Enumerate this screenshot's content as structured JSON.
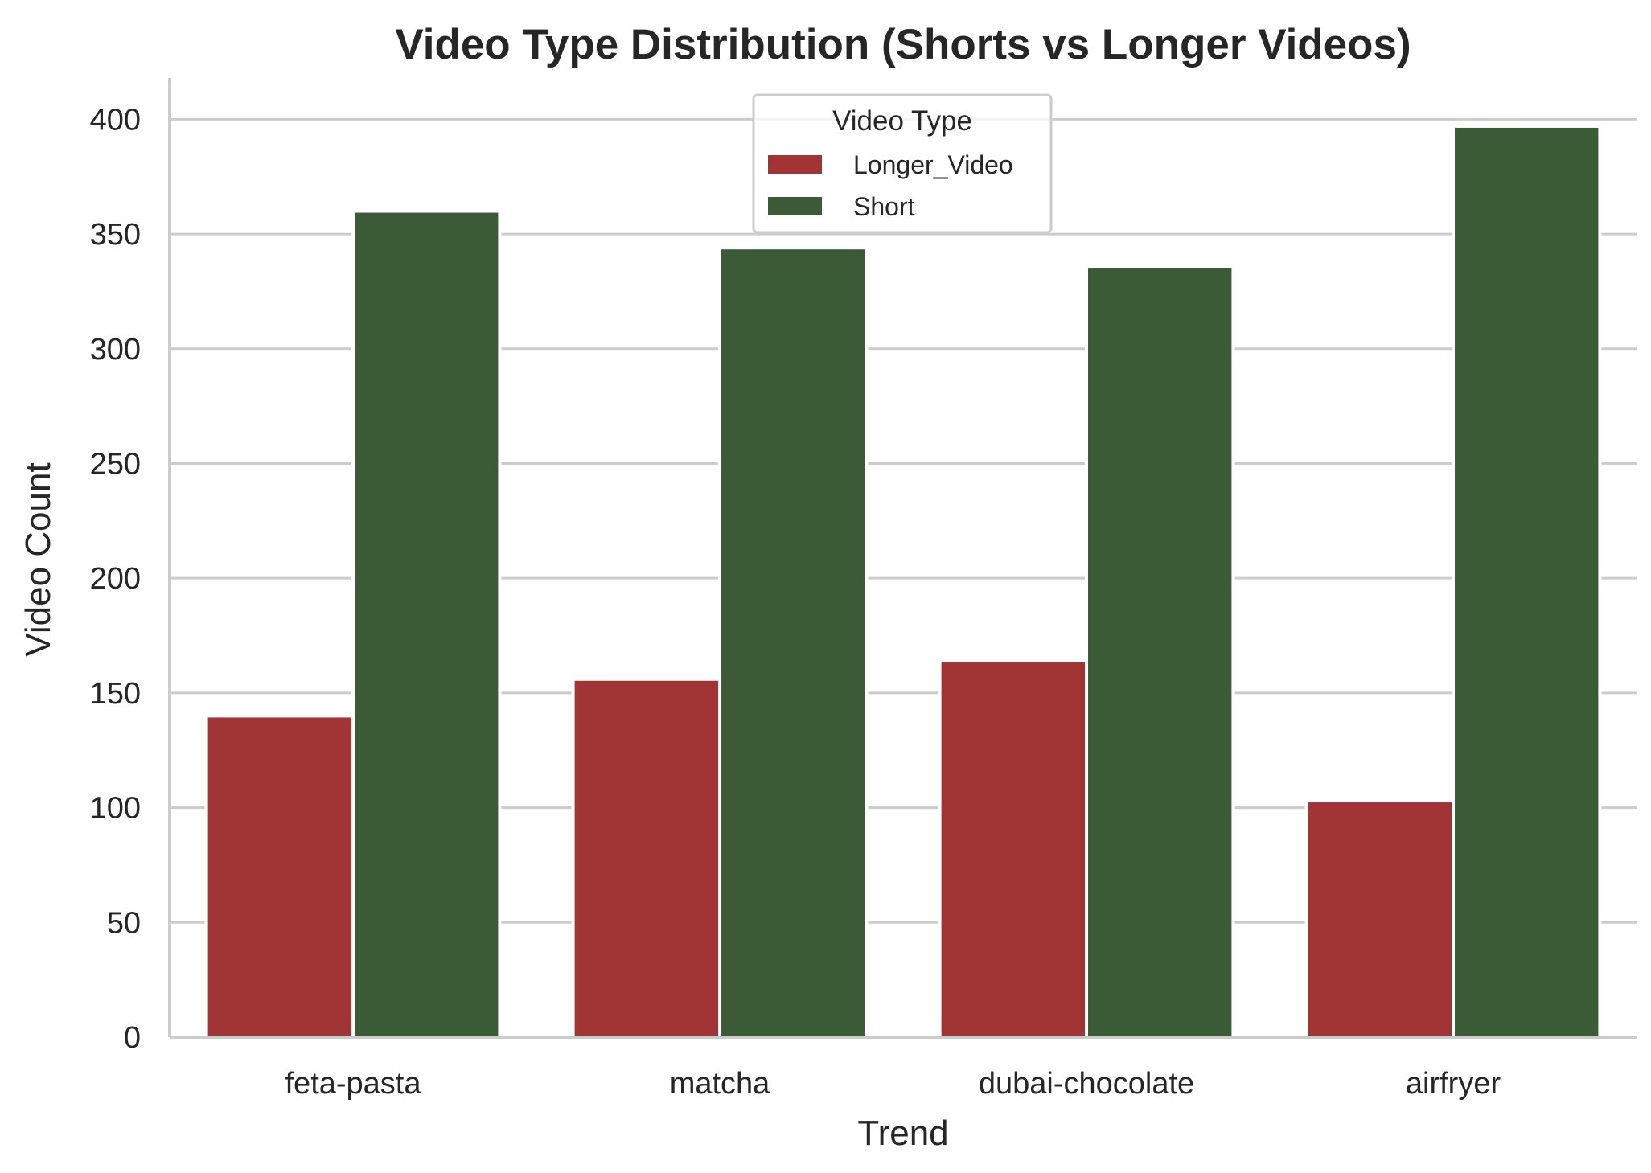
{
  "chart_data": {
    "type": "bar",
    "title": "Video Type Distribution (Shorts vs Longer Videos)",
    "xlabel": "Trend",
    "ylabel": "Video Count",
    "categories": [
      "feta-pasta",
      "matcha",
      "dubai-chocolate",
      "airfryer"
    ],
    "series": [
      {
        "name": "Longer_Video",
        "values": [
          140,
          156,
          164,
          103
        ],
        "color": "#a13434"
      },
      {
        "name": "Short",
        "values": [
          360,
          344,
          336,
          397
        ],
        "color": "#3a5b36"
      }
    ],
    "ylim": [
      0,
      418
    ],
    "yticks": [
      "0",
      "50",
      "100",
      "150",
      "200",
      "250",
      "300",
      "350",
      "400"
    ],
    "grid": "horizontal",
    "legend": {
      "title": "Video Type",
      "placement": "top-center"
    },
    "colors": {
      "grid": "#cccccc",
      "axis": "#cccccc",
      "text": "#262626"
    }
  }
}
